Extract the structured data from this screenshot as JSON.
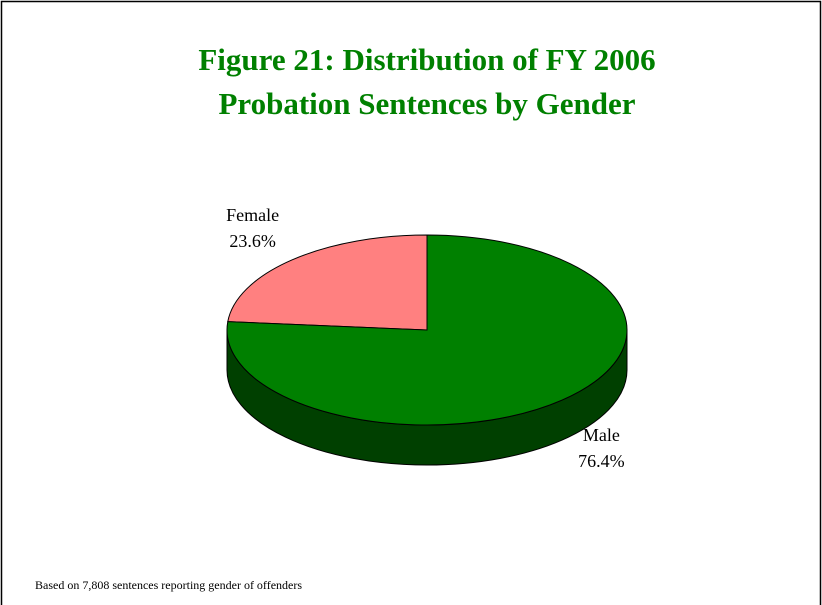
{
  "chart_data": {
    "type": "pie",
    "title": [
      "Figure 21: Distribution of FY 2006",
      "Probation Sentences by Gender"
    ],
    "categories": [
      "Female",
      "Male"
    ],
    "values": [
      23.6,
      76.4
    ],
    "value_labels": [
      "23.6%",
      "76.4%"
    ],
    "colors": [
      "#ff8080",
      "#008000"
    ],
    "note": "Based on 7,808 sentences reporting gender of offenders"
  }
}
